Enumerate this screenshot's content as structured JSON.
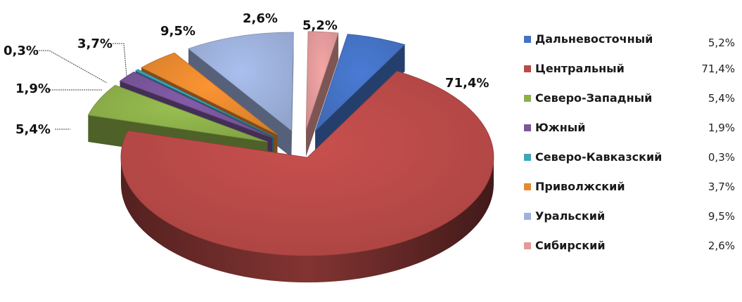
{
  "chart_data": {
    "type": "pie",
    "style": "3d-exploded",
    "legend_position": "right",
    "slices": [
      {
        "name": "Дальневосточный",
        "value": 5.2,
        "label": "5,2%",
        "legend_value": "5,2%",
        "color": "#4472c4"
      },
      {
        "name": "Центральный",
        "value": 71.4,
        "label": "71,4%",
        "legend_value": "71,4%",
        "color": "#b94a48"
      },
      {
        "name": "Северо-Западный",
        "value": 5.4,
        "label": "5,4%",
        "legend_value": "5,4%",
        "color": "#8db04a"
      },
      {
        "name": "Южный",
        "value": 1.9,
        "label": "1,9%",
        "legend_value": "1,9%",
        "color": "#7a569c"
      },
      {
        "name": "Северо-Кавказский",
        "value": 0.3,
        "label": "0,3%",
        "legend_value": "0,3%",
        "color": "#3fa6bd"
      },
      {
        "name": "Приволжский",
        "value": 3.7,
        "label": "3,7%",
        "legend_value": "3,7%",
        "color": "#e8892f"
      },
      {
        "name": "Уральский",
        "value": 9.5,
        "label": "9,5%",
        "legend_value": "9,5%",
        "color": "#9db1dc"
      },
      {
        "name": "Сибирский",
        "value": 2.6,
        "label": "2,6%",
        "legend_value": "2,6%",
        "color": "#e39a9a"
      }
    ]
  }
}
